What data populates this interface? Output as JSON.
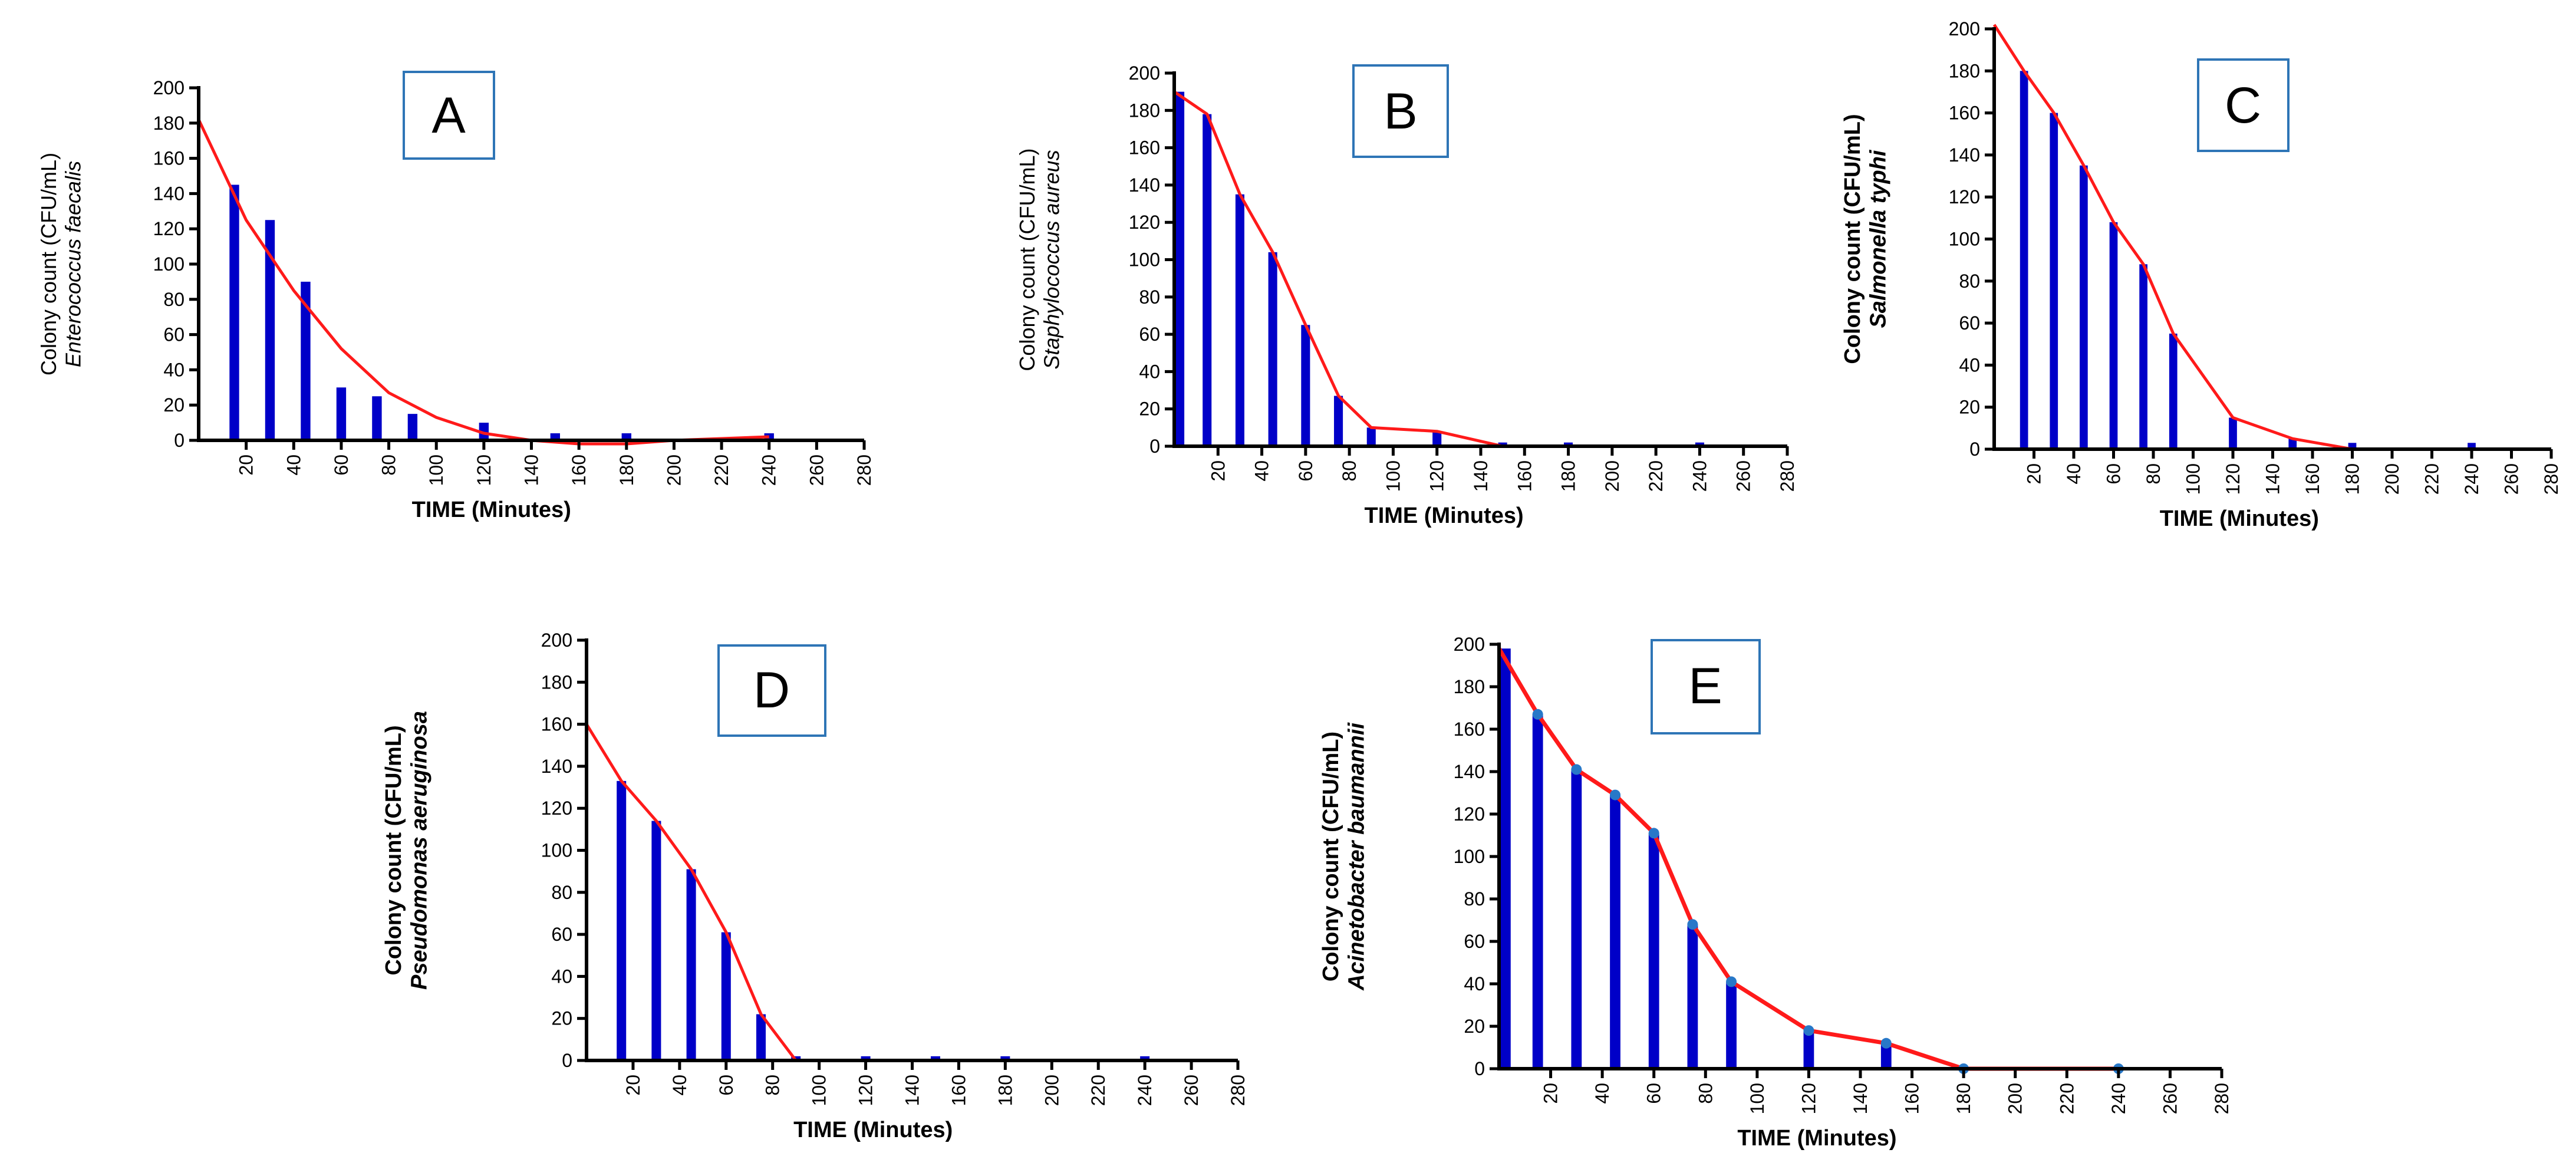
{
  "colors": {
    "bar": "#0000c8",
    "line": "#ff1a1a",
    "marker": "#2878c8",
    "axis": "#000000",
    "label_box": "#2e75b6"
  },
  "chart_data": [
    {
      "type": "bar",
      "panel_label": "A",
      "xlabel": "TIME (Minutes)",
      "ylabel_line1": "Colony count (CFU/mL)",
      "ylabel_line2": "Enterococcus faecalis",
      "xlim": [
        0,
        280
      ],
      "ylim": [
        0,
        200
      ],
      "xticks": [
        "20",
        "40",
        "60",
        "80",
        "100",
        "120",
        "140",
        "160",
        "180",
        "200",
        "220",
        "240",
        "260",
        "280"
      ],
      "yticks": [
        "0",
        "20",
        "40",
        "60",
        "80",
        "100",
        "120",
        "140",
        "160",
        "180",
        "200"
      ],
      "bars": {
        "x": [
          15,
          30,
          45,
          60,
          75,
          90,
          120,
          150,
          180,
          240
        ],
        "values": [
          145,
          125,
          90,
          30,
          25,
          15,
          10,
          4,
          4,
          4
        ]
      },
      "line": {
        "x": [
          0,
          20,
          40,
          60,
          80,
          100,
          120,
          140,
          160,
          180,
          200,
          220,
          240
        ],
        "values": [
          182,
          125,
          85,
          52,
          27,
          13,
          4,
          0,
          -2,
          -2,
          0,
          1,
          2
        ]
      },
      "markers": false
    },
    {
      "type": "bar",
      "panel_label": "B",
      "xlabel": "TIME (Minutes)",
      "ylabel_line1": "Colony count (CFU/mL)",
      "ylabel_line2": "Staphylococcus aureus",
      "xlim": [
        0,
        280
      ],
      "ylim": [
        0,
        200
      ],
      "xticks": [
        "20",
        "40",
        "60",
        "80",
        "100",
        "120",
        "140",
        "160",
        "180",
        "200",
        "220",
        "240",
        "260",
        "280"
      ],
      "yticks": [
        "0",
        "20",
        "40",
        "60",
        "80",
        "100",
        "120",
        "140",
        "160",
        "180",
        "200"
      ],
      "bars": {
        "x": [
          0,
          15,
          30,
          45,
          60,
          75,
          90,
          120,
          150,
          180,
          240
        ],
        "values": [
          190,
          178,
          135,
          104,
          65,
          27,
          10,
          8,
          2,
          2,
          2
        ]
      },
      "line": {
        "x": [
          0,
          15,
          30,
          45,
          60,
          75,
          90,
          120,
          150,
          180,
          240
        ],
        "values": [
          190,
          178,
          135,
          104,
          65,
          27,
          10,
          8,
          0,
          0,
          0
        ]
      },
      "markers": false
    },
    {
      "type": "bar",
      "panel_label": "C",
      "xlabel": "TIME (Minutes)",
      "ylabel_line1": "Colony count (CFU/mL)",
      "ylabel_line2": "Salmonella typhi",
      "xlim": [
        0,
        280
      ],
      "ylim": [
        0,
        200
      ],
      "xticks": [
        "20",
        "40",
        "60",
        "80",
        "100",
        "120",
        "140",
        "160",
        "180",
        "200",
        "220",
        "240",
        "260",
        "280"
      ],
      "yticks": [
        "0",
        "20",
        "40",
        "60",
        "80",
        "100",
        "120",
        "140",
        "160",
        "180",
        "200"
      ],
      "bars": {
        "x": [
          15,
          30,
          45,
          60,
          75,
          90,
          120,
          150,
          180,
          240
        ],
        "values": [
          180,
          160,
          135,
          108,
          88,
          55,
          15,
          5,
          3,
          3
        ]
      },
      "line": {
        "x": [
          0,
          15,
          30,
          45,
          60,
          75,
          90,
          120,
          150,
          180,
          240
        ],
        "values": [
          202,
          180,
          160,
          135,
          108,
          88,
          55,
          15,
          5,
          0,
          0
        ]
      },
      "markers": false
    },
    {
      "type": "bar",
      "panel_label": "D",
      "xlabel": "TIME (Minutes)",
      "ylabel_line1": "Colony count (CFU/mL)",
      "ylabel_line2": "Pseudomonas aeruginosa",
      "xlim": [
        0,
        280
      ],
      "ylim": [
        0,
        200
      ],
      "xticks": [
        "20",
        "40",
        "60",
        "80",
        "100",
        "120",
        "140",
        "160",
        "180",
        "200",
        "220",
        "240",
        "260",
        "280"
      ],
      "yticks": [
        "0",
        "20",
        "40",
        "60",
        "80",
        "100",
        "120",
        "140",
        "160",
        "180",
        "200"
      ],
      "bars": {
        "x": [
          15,
          30,
          45,
          60,
          75,
          90,
          120,
          150,
          180,
          240
        ],
        "values": [
          133,
          114,
          91,
          61,
          22,
          2,
          2,
          2,
          2,
          2
        ]
      },
      "line": {
        "x": [
          0,
          15,
          30,
          45,
          60,
          75,
          90,
          120,
          150,
          180,
          240
        ],
        "values": [
          160,
          133,
          114,
          91,
          61,
          22,
          0,
          0,
          0,
          0,
          0
        ]
      },
      "markers": false
    },
    {
      "type": "bar",
      "panel_label": "E",
      "xlabel": "TIME (Minutes)",
      "ylabel_line1": "Colony count (CFU/mL)",
      "ylabel_line2": "Acinetobacter baumannii",
      "xlim": [
        0,
        280
      ],
      "ylim": [
        0,
        200
      ],
      "xticks": [
        "20",
        "40",
        "60",
        "80",
        "100",
        "120",
        "140",
        "160",
        "180",
        "200",
        "220",
        "240",
        "260",
        "280"
      ],
      "yticks": [
        "0",
        "20",
        "40",
        "60",
        "80",
        "100",
        "120",
        "140",
        "160",
        "180",
        "200"
      ],
      "bars": {
        "x": [
          0,
          15,
          30,
          45,
          60,
          75,
          90,
          120,
          150
        ],
        "values": [
          198,
          167,
          141,
          129,
          111,
          68,
          41,
          18,
          12
        ]
      },
      "line": {
        "x": [
          0,
          15,
          30,
          45,
          60,
          75,
          90,
          120,
          150,
          180,
          240
        ],
        "values": [
          198,
          167,
          141,
          129,
          111,
          68,
          41,
          18,
          12,
          0,
          0
        ]
      },
      "markers": true
    }
  ]
}
